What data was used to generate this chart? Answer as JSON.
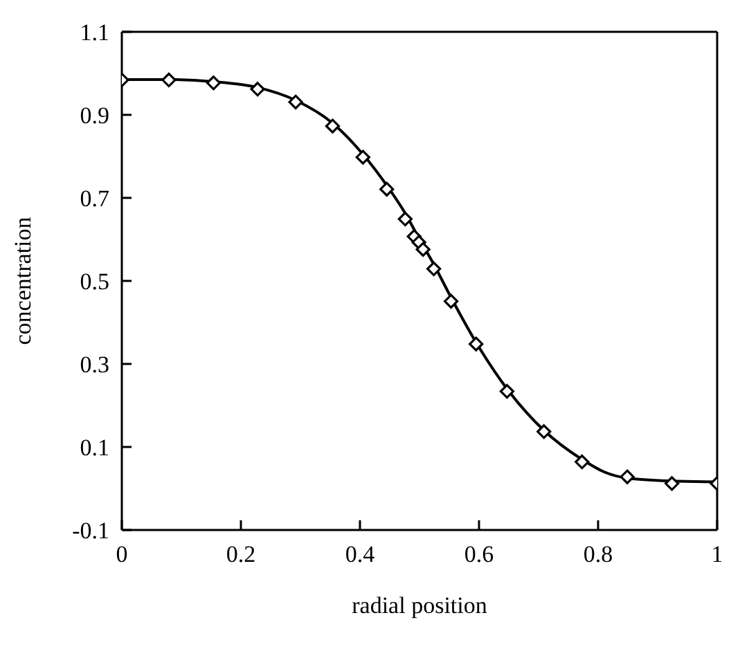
{
  "chart_data": {
    "type": "scatter",
    "xlabel": "radial position",
    "ylabel": "concentration",
    "xlim": [
      0,
      1
    ],
    "xticks": [
      0,
      0.2,
      0.4,
      0.6,
      0.8,
      1
    ],
    "ylim": [
      -0.1,
      1.1
    ],
    "yticks": [
      -0.1,
      0.1,
      0.3,
      0.5,
      0.7,
      0.9,
      1.1
    ],
    "grid": false,
    "marker": "diamond",
    "series": [
      {
        "color": "#000000",
        "x": [
          0,
          0.079,
          0.154,
          0.228,
          0.292,
          0.354,
          0.405,
          0.445,
          0.476,
          0.491,
          0.499,
          0.506,
          0.524,
          0.553,
          0.595,
          0.647,
          0.709,
          0.773,
          0.849,
          0.924,
          1.0
        ],
        "values": [
          0.984,
          0.984,
          0.977,
          0.962,
          0.931,
          0.873,
          0.798,
          0.721,
          0.649,
          0.607,
          0.593,
          0.576,
          0.529,
          0.451,
          0.348,
          0.234,
          0.137,
          0.064,
          0.028,
          0.012,
          0.012
        ]
      },
      {
        "type": "line",
        "color": "#000000",
        "marker": "none",
        "line_style": "solid",
        "x": [
          0,
          0.079,
          0.154,
          0.228,
          0.292,
          0.354,
          0.405,
          0.445,
          0.476,
          0.5,
          0.524,
          0.553,
          0.595,
          0.647,
          0.709,
          0.773,
          0.81,
          0.849,
          0.924,
          1.0
        ],
        "values": [
          0.985,
          0.985,
          0.98,
          0.966,
          0.935,
          0.88,
          0.805,
          0.73,
          0.663,
          0.6,
          0.54,
          0.46,
          0.352,
          0.24,
          0.14,
          0.07,
          0.04,
          0.025,
          0.018,
          0.016
        ]
      }
    ]
  }
}
